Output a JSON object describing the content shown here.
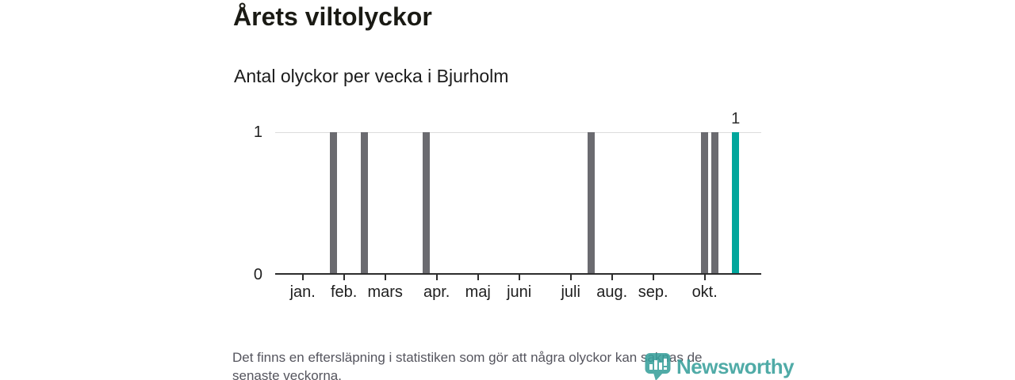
{
  "header": {
    "title": "Årets viltolyckor",
    "subtitle": "Antal olyckor per vecka i Bjurholm"
  },
  "footer": {
    "lines": [
      "Det finns en eftersläpning i statistiken som gör att några olyckor kan saknas de",
      "senaste veckorna."
    ]
  },
  "logo": {
    "text": "Newsworthy",
    "icon": "newsworthy-bubble-barchart-icon",
    "color": "#38a09c"
  },
  "chart_data": {
    "type": "bar",
    "title": "Årets viltolyckor",
    "subtitle": "Antal olyckor per vecka i Bjurholm",
    "x_unit": "vecka",
    "weeks": [
      0,
      0,
      0,
      0,
      0,
      1,
      0,
      0,
      1,
      0,
      0,
      0,
      0,
      0,
      1,
      0,
      0,
      0,
      0,
      0,
      0,
      0,
      0,
      0,
      0,
      0,
      0,
      0,
      0,
      0,
      1,
      0,
      0,
      0,
      0,
      0,
      0,
      0,
      0,
      0,
      0,
      1,
      1,
      0,
      1,
      0,
      0
    ],
    "highlight_index": 44,
    "highlight_value_label": "1",
    "month_ticks": [
      {
        "index": 2,
        "label": "jan."
      },
      {
        "index": 6,
        "label": "feb."
      },
      {
        "index": 10,
        "label": "mars"
      },
      {
        "index": 15,
        "label": "apr."
      },
      {
        "index": 19,
        "label": "maj"
      },
      {
        "index": 23,
        "label": "juni"
      },
      {
        "index": 28,
        "label": "juli"
      },
      {
        "index": 32,
        "label": "aug."
      },
      {
        "index": 36,
        "label": "sep."
      },
      {
        "index": 41,
        "label": "okt."
      }
    ],
    "ylim": [
      0,
      1
    ],
    "yticks": [
      "0",
      "1"
    ],
    "grid": "horizontal line at y=1 only",
    "legend": "none",
    "colors": {
      "bar": "#6b6b70",
      "highlight": "#00a69c",
      "axis": "#2d2d2d",
      "grid": "#dcdcdc"
    }
  }
}
